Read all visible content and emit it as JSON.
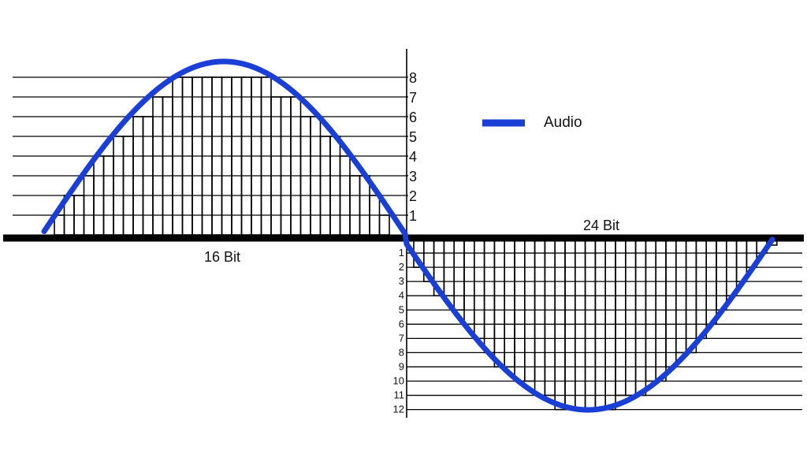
{
  "legend": {
    "label": "Audio",
    "color": "#1a3fd6"
  },
  "captions": {
    "left": "16 Bit",
    "right": "24 Bit"
  },
  "upper_levels": [
    "1",
    "2",
    "3",
    "4",
    "5",
    "6",
    "7",
    "8"
  ],
  "lower_levels": [
    "1",
    "2",
    "3",
    "4",
    "5",
    "6",
    "7",
    "8",
    "9",
    "10",
    "11",
    "12"
  ],
  "colors": {
    "axis": "#000000",
    "grid": "#000000",
    "wave": "#1a3fd6"
  }
}
